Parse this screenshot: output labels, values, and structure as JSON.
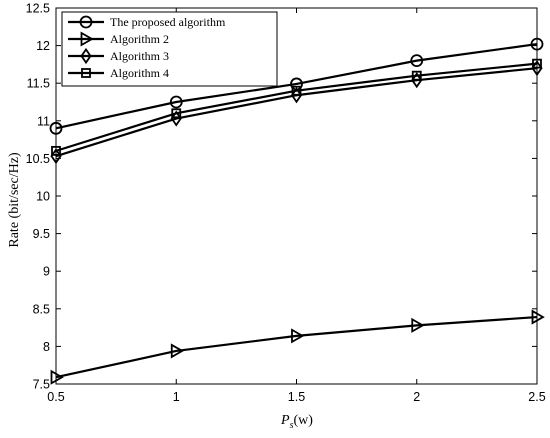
{
  "chart_data": {
    "type": "line",
    "xlabel": {
      "main": "P",
      "sub": "s",
      "unit": "(w)"
    },
    "ylabel": "Rate (bit/sec/Hz)",
    "xlim": [
      0.5,
      2.5
    ],
    "ylim": [
      7.5,
      12.5
    ],
    "x_ticks": [
      "0.5",
      "1",
      "1.5",
      "2",
      "2.5"
    ],
    "y_ticks": [
      "7.5",
      "8",
      "8.5",
      "9",
      "9.5",
      "10",
      "10.5",
      "11",
      "11.5",
      "12",
      "12.5"
    ],
    "grid": false,
    "legend_position": "top-left",
    "x": [
      0.5,
      1.0,
      1.5,
      2.0,
      2.5
    ],
    "series": [
      {
        "name": "The proposed algorithm",
        "marker": "circle",
        "color": "#000000",
        "values": [
          10.9,
          11.25,
          11.49,
          11.8,
          12.02
        ]
      },
      {
        "name": "Algorithm 2",
        "marker": "triangle-right",
        "color": "#000000",
        "values": [
          7.59,
          7.94,
          8.14,
          8.28,
          8.39
        ]
      },
      {
        "name": "Algorithm 3",
        "marker": "diamond",
        "color": "#000000",
        "values": [
          10.53,
          11.03,
          11.34,
          11.54,
          11.7
        ]
      },
      {
        "name": "Algorithm 4",
        "marker": "square",
        "color": "#000000",
        "values": [
          10.6,
          11.1,
          11.4,
          11.6,
          11.76
        ]
      }
    ]
  }
}
